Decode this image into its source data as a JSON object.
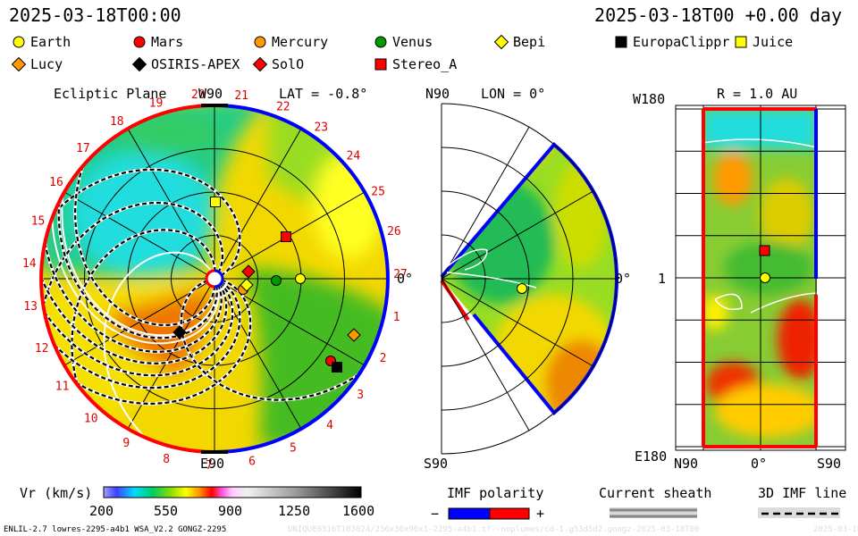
{
  "header": {
    "timestamp_left": "2025-03-18T00:00",
    "timestamp_right": "2025-03-18T00 +0.00 day"
  },
  "legend": [
    {
      "name": "Earth",
      "shape": "circle",
      "color": "#ffff00"
    },
    {
      "name": "Mars",
      "shape": "circle",
      "color": "#ff0000"
    },
    {
      "name": "Mercury",
      "shape": "circle",
      "color": "#ff9900"
    },
    {
      "name": "Venus",
      "shape": "circle",
      "color": "#009900"
    },
    {
      "name": "Bepi",
      "shape": "diamond",
      "color": "#ffff00"
    },
    {
      "name": "EuropaClippr",
      "shape": "square",
      "color": "#000000"
    },
    {
      "name": "Juice",
      "shape": "square",
      "color": "#ffff00"
    },
    {
      "name": "Lucy",
      "shape": "diamond",
      "color": "#ff9900"
    },
    {
      "name": "OSIRIS-APEX",
      "shape": "diamond",
      "color": "#000000"
    },
    {
      "name": "SolO",
      "shape": "diamond",
      "color": "#ff0000"
    },
    {
      "name": "Stereo_A",
      "shape": "square",
      "color": "#ff0000"
    }
  ],
  "ecliptic": {
    "title": "Ecliptic Plane",
    "lat": "LAT = -0.8°",
    "top": "W90",
    "bottom": "E90",
    "right": "0°",
    "day_numbers": [
      "20",
      "21",
      "22",
      "23",
      "24",
      "25",
      "26",
      "27",
      "1",
      "2",
      "3",
      "4",
      "5",
      "6",
      "7",
      "8",
      "9",
      "10",
      "11",
      "12",
      "13",
      "14",
      "15",
      "16",
      "17",
      "18",
      "19"
    ]
  },
  "meridional": {
    "lon": "LON = 0°",
    "top": "N90",
    "bottom": "S90",
    "right": "0°"
  },
  "radial": {
    "title": "R = 1.0 AU",
    "top": "W180",
    "bottom": "E180",
    "left_mid": "1",
    "bottom_left": "N90",
    "bottom_mid": "0°",
    "bottom_right": "S90"
  },
  "colorbar": {
    "label": "Vr (km/s)",
    "ticks": [
      "200",
      "550",
      "900",
      "1250",
      "1600"
    ]
  },
  "imf": {
    "title": "IMF polarity",
    "minus": "−",
    "plus": "+",
    "neg_color": "#0000ff",
    "pos_color": "#ff0000"
  },
  "sheath": {
    "title": "Current sheath"
  },
  "imf3d": {
    "title": "3D IMF line"
  },
  "footer": {
    "model": "ENLIL-2.7 lowres-2295-a4b1 WSA_V2.2 GONGZ-2295",
    "file": "UNIQUE0316T103024/256x30x90x1-2295-a4b1.tf--noplumes/cd-1.g53d5d2.gongz-2025-03-18T00",
    "date": "2025-03-18"
  }
}
